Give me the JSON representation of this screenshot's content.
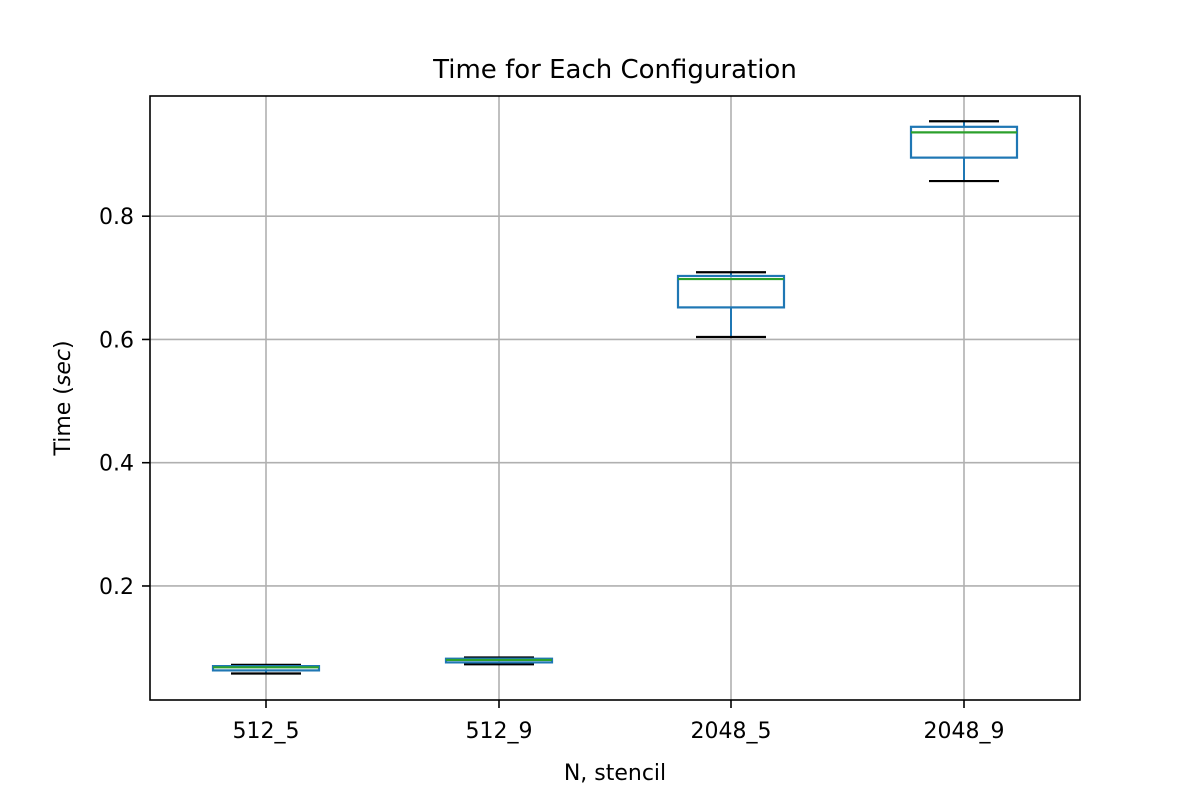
{
  "chart_data": {
    "type": "box",
    "title": "Time for Each Configuration",
    "xlabel": "N, stencil",
    "ylabel_main": "Time (",
    "ylabel_italic": "sec",
    "ylabel_close": ")",
    "categories": [
      "512_5",
      "512_9",
      "2048_5",
      "2048_9"
    ],
    "boxes": [
      {
        "label": "512_5",
        "whisker_low": 0.058,
        "q1": 0.063,
        "median": 0.068,
        "q3": 0.07,
        "whisker_high": 0.072
      },
      {
        "label": "512_9",
        "whisker_low": 0.073,
        "q1": 0.076,
        "median": 0.08,
        "q3": 0.082,
        "whisker_high": 0.084
      },
      {
        "label": "2048_5",
        "whisker_low": 0.604,
        "q1": 0.652,
        "median": 0.698,
        "q3": 0.703,
        "whisker_high": 0.709
      },
      {
        "label": "2048_9",
        "whisker_low": 0.857,
        "q1": 0.895,
        "median": 0.936,
        "q3": 0.945,
        "whisker_high": 0.954
      }
    ],
    "yticks": [
      0.2,
      0.4,
      0.6,
      0.8
    ],
    "ytick_labels": [
      "0.2",
      "0.4",
      "0.6",
      "0.8"
    ],
    "ylim": [
      0.015,
      0.995
    ],
    "grid": true,
    "colors": {
      "box": "#1f77b4",
      "median": "#2ca02c",
      "whisker_cap": "#000000",
      "grid": "#b0b0b0",
      "frame": "#000000"
    }
  }
}
